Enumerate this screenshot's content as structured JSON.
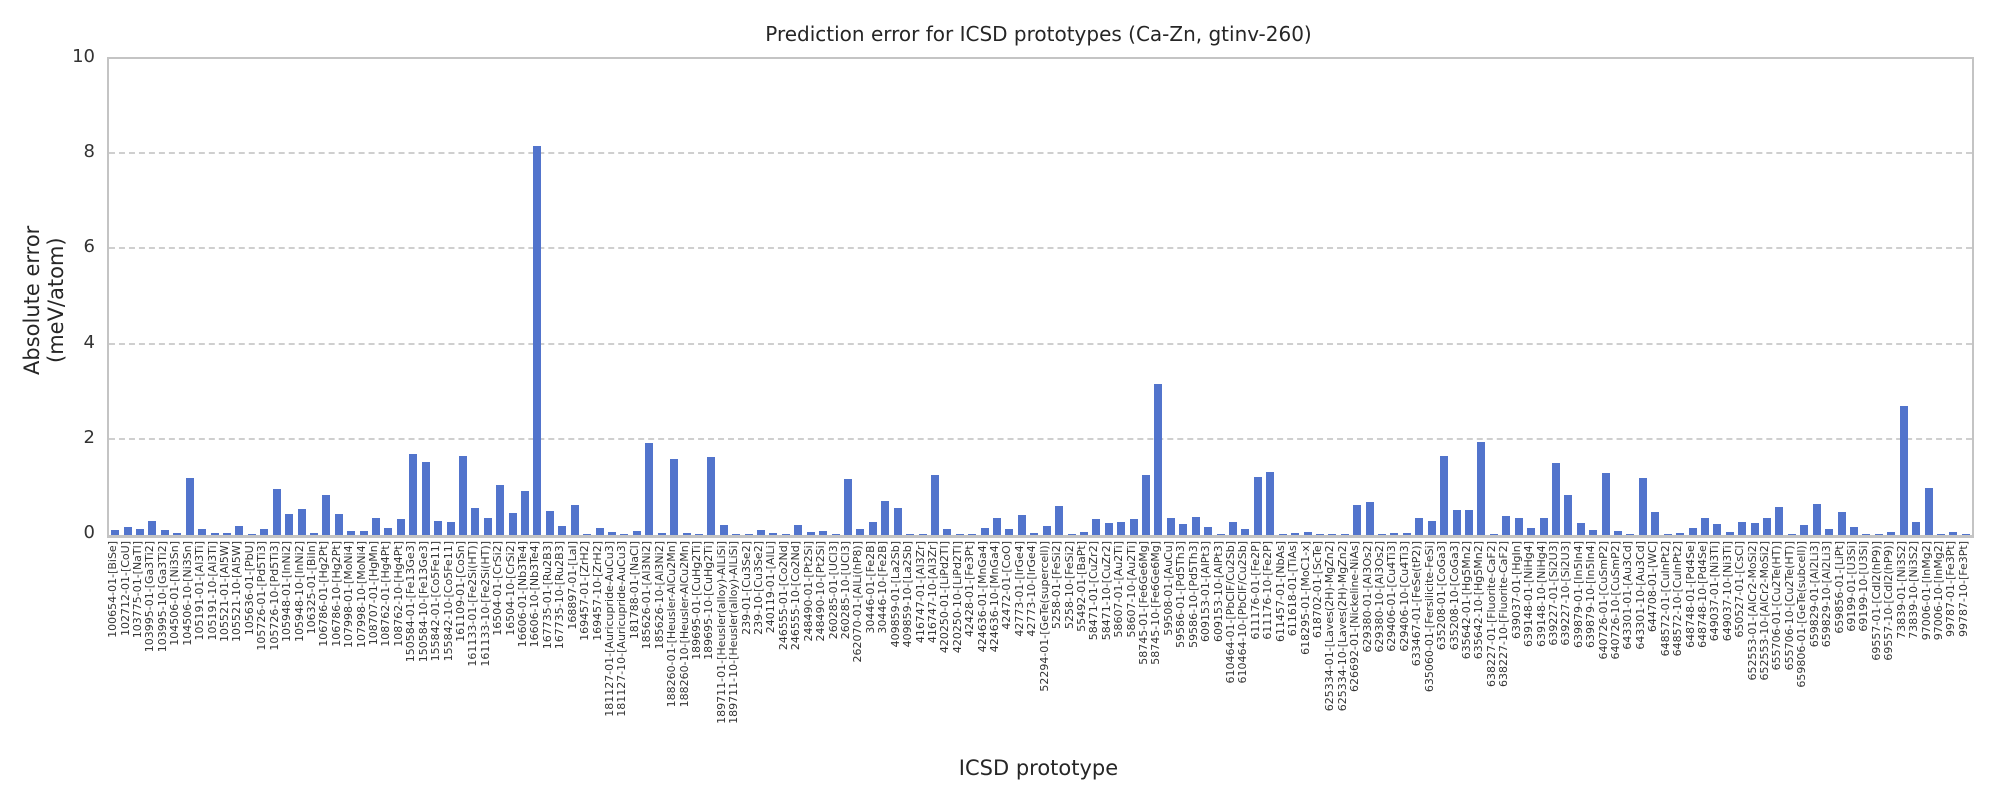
{
  "colors": {
    "bar": "#5274cc",
    "grid": "#cfcfcf",
    "spine": "#c4c4c4",
    "text": "#262626"
  },
  "chart_data": {
    "type": "bar",
    "title": "Prediction error for ICSD prototypes (Ca-Zn, gtinv-260)",
    "xlabel": "ICSD prototype",
    "ylabel": "Absolute error (meV/atom)",
    "ylim": [
      0,
      10
    ],
    "yticks": [
      0,
      2,
      4,
      6,
      8,
      10
    ],
    "grid": true,
    "grid_style": "dashed-horizontal",
    "legend": "none",
    "bar_color": "#5274cc",
    "categories": [
      "100654-01-[BiSe]",
      "102712-01-[CoU]",
      "103775-01-[NaTl]",
      "103995-01-[Ga3Ti2]",
      "103995-10-[Ga3Ti2]",
      "104506-01-[Ni3Sn]",
      "104506-10-[Ni3Sn]",
      "105191-01-[Al3Ti]",
      "105191-10-[Al3Ti]",
      "105521-01-[Al5W]",
      "105521-10-[Al5W]",
      "105636-01-[PbU]",
      "105726-01-[Pd5Ti3]",
      "105726-10-[Pd5Ti3]",
      "105948-01-[InNi2]",
      "105948-10-[InNi2]",
      "106325-01-[BiIn]",
      "106786-01-[Hg2Pt]",
      "106786-10-[Hg2Pt]",
      "107998-01-[MoNi4]",
      "107998-10-[MoNi4]",
      "108707-01-[HgMn]",
      "108762-01-[Hg4Pt]",
      "108762-10-[Hg4Pt]",
      "150584-01-[Fe13Ge3]",
      "150584-10-[Fe13Ge3]",
      "155842-01-[Co5Fe11]",
      "155842-10-[Co5Fe11]",
      "161109-01-[CoSn]",
      "161133-01-[Fe2Si(HT)]",
      "161133-10-[Fe2Si(HT)]",
      "16504-01-[CrSi2]",
      "16504-10-[CrSi2]",
      "16606-01-[Nb3Te4]",
      "16606-10-[Nb3Te4]",
      "167735-01-[Ru2B3]",
      "167735-10-[Ru2B3]",
      "168897-01-[LaI]",
      "169457-01-[ZrH2]",
      "169457-10-[ZrH2]",
      "181127-01-[Auricupride-AuCu3]",
      "181127-10-[Auricupride-AuCu3]",
      "181788-01-[NaCl]",
      "185626-01-[Al3Ni2]",
      "185626-10-[Al3Ni2]",
      "188260-01-[Heusler-AlCu2Mn]",
      "188260-10-[Heusler-AlCu2Mn]",
      "189695-01-[CuHg2Ti]",
      "189695-10-[CuHg2Ti]",
      "189711-01-[Heusler(alloy)-AlLiSi]",
      "189711-10-[Heusler(alloy)-AlLiSi]",
      "239-01-[Cu3Se2]",
      "239-10-[Cu3Se2]",
      "240119-01-[AlLi]",
      "246555-01-[Co2Nd]",
      "246555-10-[Co2Nd]",
      "248490-01-[Pt2Si]",
      "248490-10-[Pt2Si]",
      "260285-01-[UCl3]",
      "260285-10-[UCl3]",
      "262070-01-[AlLi(hP8)]",
      "30446-01-[Fe2B]",
      "30446-10-[Fe2B]",
      "409859-01-[La2Sb]",
      "409859-10-[La2Sb]",
      "416747-01-[Al3Zr]",
      "416747-10-[Al3Zr]",
      "420250-01-[LiPd2Tl]",
      "420250-10-[LiPd2Tl]",
      "42428-01-[Fe3Pt]",
      "424636-01-[MnGa4]",
      "424636-10-[MnGa4]",
      "42472-01-[CoO]",
      "42773-01-[IrGe4]",
      "42773-10-[IrGe4]",
      "52294-01-[GeTe(supercell)]",
      "5258-01-[FeSi2]",
      "5258-10-[FeSi2]",
      "55492-01-[BaPt]",
      "58471-01-[CuZr2]",
      "58471-10-[CuZr2]",
      "58607-01-[Au2Ti]",
      "58607-10-[Au2Ti]",
      "58745-01-[Fe6Ge6Mg]",
      "58745-10-[Fe6Ge6Mg]",
      "59508-01-[AuCu]",
      "59586-01-[Pd5Th3]",
      "59586-10-[Pd5Th3]",
      "609153-01-[AlPt3]",
      "609153-10-[AlPt3]",
      "610464-01-[PbClF/Cu2Sb]",
      "610464-10-[PbClF/Cu2Sb]",
      "611176-01-[Fe2P]",
      "611176-10-[Fe2P]",
      "611457-01-[NbAs]",
      "611618-01-[TiAs]",
      "618295-01-[MoC1-x]",
      "618702-01-[ScTe]",
      "625334-01-[Laves(2H)-MgZn2]",
      "625334-10-[Laves(2H)-MgZn2]",
      "626692-01-[Nickeline-NiAs]",
      "629380-01-[Al3Os2]",
      "629380-10-[Al3Os2]",
      "629406-01-[Cu4Ti3]",
      "629406-10-[Cu4Ti3]",
      "633467-01-[FeSe(tP2)]",
      "635060-01-[Fersilicite-FeSi]",
      "635208-01-[CoGa3]",
      "635208-10-[CoGa3]",
      "635642-01-[Hg5Mn2]",
      "635642-10-[Hg5Mn2]",
      "638227-01-[Fluorite-CaF2]",
      "638227-10-[Fluorite-CaF2]",
      "639037-01-[HgIn]",
      "639148-01-[NiHg4]",
      "639148-10-[NiHg4]",
      "639227-01-[Si2U3]",
      "639227-10-[Si2U3]",
      "639879-01-[In5In4]",
      "639879-10-[In5In4]",
      "640726-01-[CuSmP2]",
      "640726-10-[CuSmP2]",
      "643301-01-[Au3Cd]",
      "643301-10-[Au3Cd]",
      "644708-01-[WC]",
      "648572-01-[CuInPt2]",
      "648572-10-[CuInPt2]",
      "648748-01-[Pd4Se]",
      "648748-10-[Pd4Se]",
      "649037-01-[Ni3Ti]",
      "649037-10-[Ni3Ti]",
      "650527-01-[CsCl]",
      "652553-01-[AlCr2-MoSi2]",
      "652553-10-[AlCr2-MoSi2]",
      "655706-01-[Cu2Te(HT)]",
      "655706-10-[Cu2Te(HT)]",
      "659806-01-[GeTe(subcell)]",
      "659829-01-[Al2Li3]",
      "659829-10-[Al2Li3]",
      "659856-01-[LiPt]",
      "69199-01-[U3Si]",
      "69199-10-[U3Si]",
      "69557-01-[CdI2(hP9)]",
      "69557-10-[CdI2(hP9)]",
      "73839-01-[Ni3S2]",
      "73839-10-[Ni3S2]",
      "97006-01-[InMg2]",
      "97006-10-[InMg2]",
      "99787-01-[Fe3Pt]",
      "99787-10-[Fe3Pt]"
    ],
    "values": [
      0.1,
      0.17,
      0.13,
      0.3,
      0.1,
      0.05,
      1.2,
      0.12,
      0.04,
      0.05,
      0.18,
      0.02,
      0.12,
      0.97,
      0.45,
      0.55,
      0.05,
      0.84,
      0.45,
      0.08,
      0.08,
      0.35,
      0.15,
      0.33,
      1.7,
      1.54,
      0.3,
      0.27,
      1.65,
      0.57,
      0.35,
      1.06,
      0.47,
      0.92,
      8.18,
      0.51,
      0.18,
      0.64,
      0.02,
      0.14,
      0.06,
      0.01,
      0.08,
      1.94,
      0.04,
      1.59,
      0.05,
      0.02,
      1.63,
      0.21,
      0.01,
      0.02,
      0.11,
      0.05,
      0.01,
      0.21,
      0.07,
      0.09,
      0.01,
      1.18,
      0.12,
      0.27,
      0.71,
      0.57,
      0.01,
      0.03,
      1.26,
      0.13,
      0.01,
      0.02,
      0.14,
      0.35,
      0.13,
      0.41,
      0.04,
      0.18,
      0.6,
      0.01,
      0.06,
      0.34,
      0.26,
      0.27,
      0.33,
      1.26,
      3.18,
      0.35,
      0.23,
      0.37,
      0.16,
      0.01,
      0.28,
      0.13,
      1.22,
      1.33,
      0.01,
      0.05,
      0.07,
      0.02,
      0.02,
      0.01,
      0.64,
      0.69,
      0.02,
      0.04,
      0.05,
      0.35,
      0.3,
      1.67,
      0.52,
      0.52,
      1.96,
      0.01,
      0.4,
      0.35,
      0.14,
      0.35,
      1.51,
      0.85,
      0.26,
      0.11,
      1.31,
      0.08,
      0.02,
      1.2,
      0.49,
      0.01,
      0.04,
      0.14,
      0.35,
      0.23,
      0.06,
      0.28,
      0.26,
      0.35,
      0.58,
      0.02,
      0.2,
      0.65,
      0.13,
      0.49,
      0.16,
      0.02,
      0.03,
      0.06,
      2.72,
      0.28,
      0.99,
      0.03,
      0.06,
      0.01
    ]
  }
}
